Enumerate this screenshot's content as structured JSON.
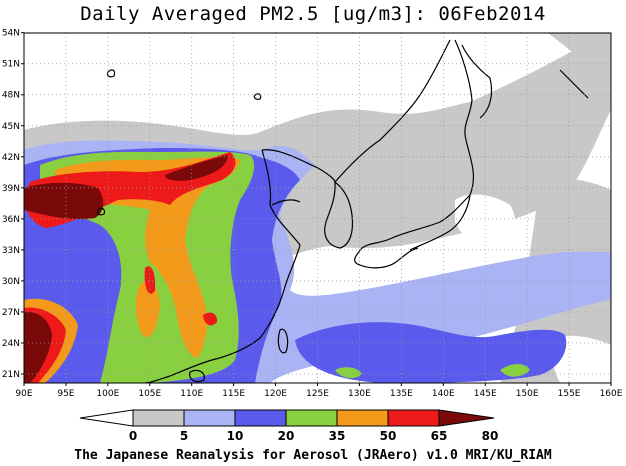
{
  "title": "Daily Averaged PM2.5 [ug/m3]: 06Feb2014",
  "footer": "The Japanese Reanalysis for Aerosol (JRAero) v1.0 MRI/KU_RIAM",
  "lon_ticks": [
    "90E",
    "95E",
    "100E",
    "105E",
    "110E",
    "115E",
    "120E",
    "125E",
    "130E",
    "135E",
    "140E",
    "145E",
    "150E",
    "155E",
    "160E"
  ],
  "lat_ticks": [
    "21N",
    "24N",
    "27N",
    "30N",
    "33N",
    "36N",
    "39N",
    "42N",
    "45N",
    "48N",
    "51N",
    "54N"
  ],
  "colorbar": {
    "labels": [
      "0",
      "5",
      "10",
      "20",
      "35",
      "50",
      "65",
      "80"
    ],
    "colors": [
      "#ffffff",
      "#c8c8c8",
      "#aab4f5",
      "#5a5aec",
      "#88d040",
      "#f49a1a",
      "#ee1a1a",
      "#7a0a0a"
    ]
  },
  "palette": {
    "land_boundary": "#000000",
    "frame": "#000000",
    "grid": "#9a9a9a"
  }
}
